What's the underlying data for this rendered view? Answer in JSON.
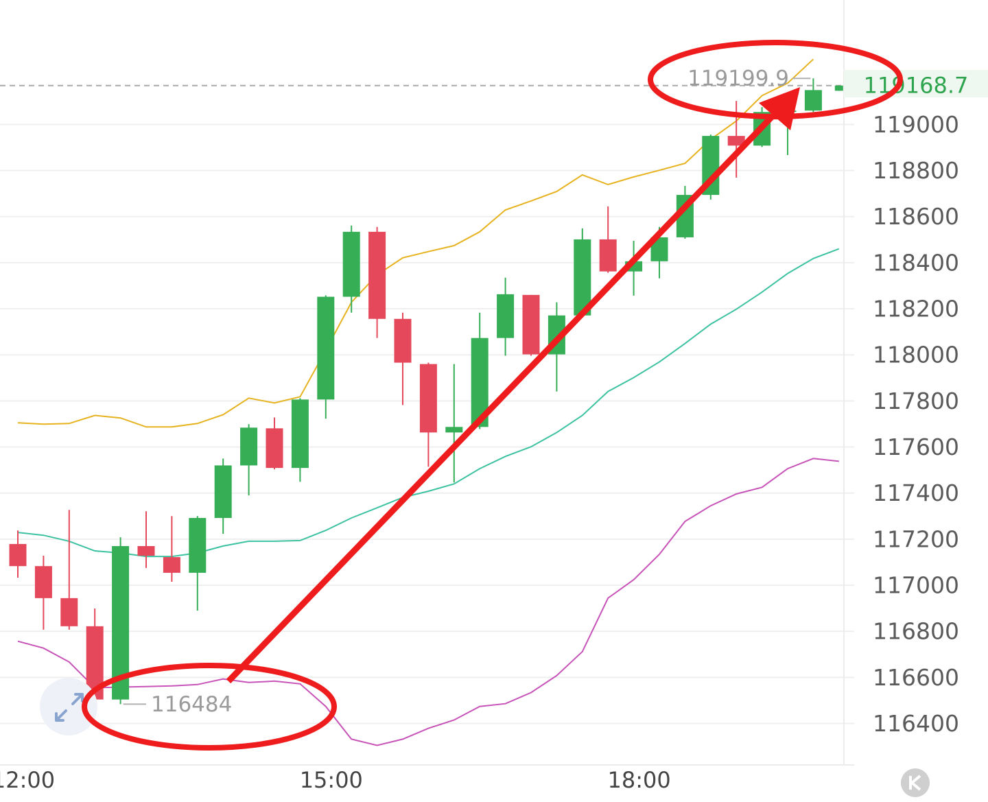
{
  "chart_data": {
    "type": "candlestick",
    "ylim": [
      116220,
      119540
    ],
    "yticks": [
      116400,
      116600,
      116800,
      117000,
      117200,
      117400,
      117600,
      117800,
      118000,
      118200,
      118400,
      118600,
      118800,
      119000
    ],
    "xticks": [
      {
        "value": 0,
        "label": "12:00"
      },
      {
        "value": 12,
        "label": "15:00"
      },
      {
        "value": 24,
        "label": "18:00"
      }
    ],
    "up_color": "#35ae55",
    "down_color": "#e5485b",
    "grid": true,
    "series": {
      "open": [
        117179,
        117083,
        116944,
        116822,
        116504,
        117170,
        117122,
        117054,
        117292,
        117520,
        117681,
        117509,
        117806,
        118252,
        118534,
        118156,
        117960,
        117663,
        117687,
        118073,
        118260,
        118002,
        118171,
        118501,
        118362,
        118406,
        118510,
        118694,
        118950,
        118908,
        119054,
        119060,
        119146
      ],
      "high": [
        117238,
        117128,
        117327,
        116899,
        117208,
        117321,
        117300,
        117300,
        117550,
        117699,
        117728,
        117812,
        118258,
        118561,
        118555,
        118183,
        117966,
        117960,
        118183,
        118335,
        118260,
        118228,
        118549,
        118644,
        118495,
        118555,
        118733,
        118956,
        119102,
        119075,
        119090,
        119199.9,
        119170
      ],
      "low": [
        117033,
        116807,
        116807,
        116484.2,
        116484,
        117075,
        117015,
        116890,
        117223,
        117390,
        117503,
        117449,
        117723,
        118183,
        118073,
        117782,
        117514,
        117446,
        117678,
        117996,
        117996,
        117841,
        118168,
        118356,
        118257,
        118332,
        118504,
        118674,
        118769,
        118902,
        118867,
        119054,
        119146
      ],
      "close": [
        117083,
        116944,
        116822,
        116504,
        117170,
        117128,
        117054,
        117292,
        117520,
        117684,
        117509,
        117806,
        118252,
        118534,
        118156,
        117966,
        117663,
        117687,
        118073,
        118263,
        118002,
        118171,
        118501,
        118362,
        118406,
        118510,
        118694,
        118950,
        118908,
        119054,
        119060,
        119149,
        119168.7
      ]
    },
    "lines": [
      {
        "color": "#e6b21e",
        "values": [
          117705,
          117699,
          117702,
          117737,
          117726,
          117687,
          117687,
          117702,
          117740,
          117812,
          117791,
          117818,
          118020,
          118228,
          118347,
          118421,
          118448,
          118474,
          118534,
          118629,
          118668,
          118709,
          118781,
          118739,
          118772,
          118801,
          118831,
          118935,
          119015,
          119125,
          119179,
          119283,
          null
        ]
      },
      {
        "color": "#3cc2a0",
        "values": [
          117229,
          117217,
          117191,
          117149,
          117140,
          117125,
          117125,
          117140,
          117170,
          117191,
          117191,
          117194,
          117238,
          117292,
          117336,
          117381,
          117408,
          117440,
          117506,
          117559,
          117601,
          117663,
          117737,
          117841,
          117901,
          117969,
          118049,
          118133,
          118198,
          118272,
          118353,
          118418,
          118460
        ]
      },
      {
        "color": "#c753b8",
        "values": [
          116757,
          116727,
          116667,
          116555,
          116558,
          116560,
          116563,
          116569,
          116593,
          116578,
          116584,
          116572,
          116474,
          116332,
          116305,
          116332,
          116379,
          116415,
          116474,
          116486,
          116534,
          116608,
          116712,
          116944,
          117024,
          117134,
          117277,
          117345,
          117396,
          117425,
          117506,
          117550,
          117538
        ]
      }
    ]
  }
}
